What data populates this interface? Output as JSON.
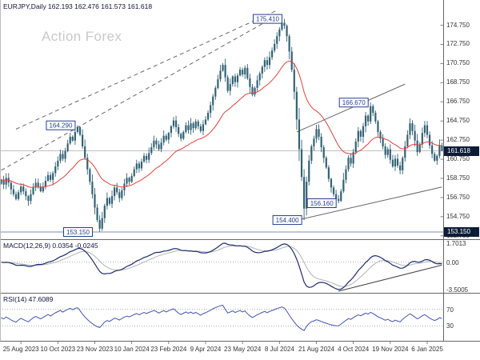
{
  "title": "EURJPY,Daily 162.193 162.476 161.573 161.618",
  "watermark": "Action Forex",
  "colors": {
    "background": "#ffffff",
    "candle": "#336275",
    "ma": "#e8403a",
    "macd": "#1c2b6e",
    "macd_signal": "#b3b3b3",
    "rsi": "#4053b8",
    "label_box": "#24408f",
    "axis_box_bg": "#0c1c38",
    "axis_box_text": "#ffffff",
    "trendline": "#666666",
    "level_line": "#4a66a8",
    "current_price_line": "#9a9a9a",
    "separator": "#666666",
    "axis_text": "#333333",
    "watermark_color": "#c9c9c9"
  },
  "chart_data": {
    "type": "candlestick",
    "symbol": "EURJPY",
    "timeframe": "Daily",
    "ohlc": {
      "open": 162.193,
      "high": 162.476,
      "low": 161.573,
      "close": 161.618
    },
    "last_candle": {
      "open": 162.193,
      "high": 162.476,
      "low": 161.573,
      "close": 161.618
    },
    "closes": [
      158.6,
      158.1,
      158.8,
      158.3,
      157.6,
      157.1,
      156.6,
      157.3,
      157.9,
      157.4,
      156.9,
      156.4,
      157.1,
      157.8,
      158.3,
      157.9,
      157.4,
      157.9,
      158.5,
      159.1,
      158.6,
      159.3,
      160.0,
      160.6,
      161.3,
      160.8,
      161.6,
      162.4,
      163.1,
      162.7,
      163.6,
      164.1,
      163.3,
      162.1,
      160.9,
      159.7,
      158.4,
      157.1,
      155.7,
      154.4,
      153.5,
      154.6,
      155.9,
      156.7,
      156.1,
      156.9,
      157.8,
      157.3,
      156.7,
      157.5,
      158.2,
      158.8,
      158.4,
      159.0,
      159.7,
      160.3,
      159.8,
      160.5,
      161.1,
      160.7,
      161.4,
      162.0,
      162.7,
      162.3,
      161.8,
      162.5,
      163.2,
      162.8,
      163.5,
      164.2,
      164.8,
      164.1,
      163.4,
      162.9,
      163.6,
      164.3,
      163.8,
      164.5,
      164.0,
      164.7,
      164.2,
      163.7,
      164.4,
      164.9,
      165.6,
      166.4,
      167.3,
      168.2,
      169.1,
      170.0,
      170.6,
      169.3,
      167.9,
      168.6,
      169.4,
      168.8,
      169.5,
      170.1,
      169.6,
      170.3,
      169.2,
      168.3,
      167.5,
      168.2,
      169.0,
      169.7,
      170.4,
      171.1,
      170.6,
      171.4,
      172.1,
      172.8,
      173.6,
      174.3,
      175.0,
      174.7,
      173.6,
      172.0,
      170.1,
      167.8,
      164.9,
      161.8,
      158.9,
      155.6,
      158.4,
      160.6,
      162.1,
      162.9,
      163.9,
      163.1,
      162.0,
      160.9,
      159.9,
      158.7,
      157.8,
      157.1,
      156.6,
      156.4,
      157.4,
      158.6,
      159.7,
      160.9,
      160.3,
      161.5,
      162.6,
      163.7,
      163.1,
      164.2,
      165.3,
      164.7,
      166.3,
      165.6,
      164.7,
      163.6,
      162.9,
      162.1,
      161.2,
      161.8,
      160.7,
      160.0,
      160.8,
      160.1,
      159.6,
      160.9,
      162.1,
      163.3,
      164.5,
      163.7,
      162.7,
      161.5,
      162.3,
      163.5,
      164.3,
      163.3,
      162.2,
      161.3,
      160.6,
      161.1,
      162.2,
      161.618
    ],
    "price_axis": {
      "max": 177.3,
      "min": 152.4,
      "ticks": [
        "174.750",
        "172.750",
        "170.750",
        "168.750",
        "166.750",
        "164.750",
        "162.750",
        "160.750",
        "158.750",
        "156.750",
        "154.750",
        "152.750"
      ]
    },
    "time_axis": {
      "labels": [
        "25 Aug 2023",
        "10 Oct 2023",
        "23 Nov 2023",
        "10 Jan 2024",
        "23 Feb 2024",
        "9 Apr 2024",
        "23 May 2024",
        "8 Jul 2024",
        "21 Aug 2024",
        "4 Oct 2024",
        "19 Nov 2024",
        "6 Jan 2025"
      ]
    },
    "swings": [
      {
        "index": 31,
        "price": 164.29,
        "kind": "high",
        "label": "164.290"
      },
      {
        "index": 40,
        "price": 153.15,
        "kind": "low",
        "label": ""
      },
      {
        "index": 115,
        "price": 175.41,
        "kind": "high",
        "label": "175.410"
      },
      {
        "index": 123,
        "price": 154.4,
        "kind": "low",
        "label": "154.400"
      },
      {
        "index": 137,
        "price": 156.16,
        "kind": "low",
        "label": "156.160"
      },
      {
        "index": 150,
        "price": 166.67,
        "kind": "high",
        "label": "166.670"
      }
    ],
    "levels": {
      "current": {
        "price": 161.618,
        "label": "161.618"
      },
      "support": {
        "price": 153.15,
        "label": "153.150",
        "box_index": 38
      }
    },
    "trendlines": [
      {
        "i1": 0,
        "p1": 159.6,
        "i2": 113,
        "p2": 175.9,
        "style": "dashed"
      },
      {
        "i1": 6,
        "p1": 163.9,
        "i2": 112,
        "p2": 176.3,
        "style": "dashed"
      },
      {
        "i1": 120,
        "p1": 163.6,
        "i2": 164,
        "p2": 168.6,
        "style": "solid"
      },
      {
        "i1": 122,
        "p1": 154.5,
        "i2": 179,
        "p2": 157.85,
        "style": "solid"
      }
    ],
    "moving_average": {
      "type": "ema",
      "period": 25
    },
    "indicators": {
      "macd": {
        "label": "MACD(12,26,9) 0.0354 -0.0245",
        "params": [
          12,
          26,
          9
        ],
        "axis_labels": {
          "max": "1.7013",
          "zero": "0.00",
          "min": "-3.5005"
        },
        "trendline_end_value": -0.3
      },
      "rsi": {
        "label": "RSI(14) 47.6089",
        "period": 14,
        "value": 47.6089,
        "guides": [
          70,
          30
        ],
        "axis_labels": [
          "70",
          "30"
        ]
      }
    }
  }
}
